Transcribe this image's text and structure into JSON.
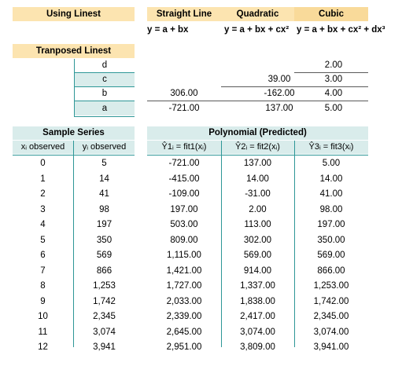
{
  "top": {
    "using_linest": "Using Linest",
    "models": [
      {
        "title": "Straight Line",
        "formula": "y = a + bx"
      },
      {
        "title": "Quadratic",
        "formula": "y = a + bx + cx²"
      },
      {
        "title": "Cubic",
        "formula": "y = a + bx + cx² + dx³"
      }
    ]
  },
  "transposed": {
    "title": "Tranposed Linest",
    "rows": [
      {
        "label": "d",
        "linear": "",
        "quad": "",
        "cubic": "2.00"
      },
      {
        "label": "c",
        "linear": "",
        "quad": "39.00",
        "cubic": "3.00"
      },
      {
        "label": "b",
        "linear": "306.00",
        "quad": "-162.00",
        "cubic": "4.00"
      },
      {
        "label": "a",
        "linear": "-721.00",
        "quad": "137.00",
        "cubic": "5.00"
      }
    ]
  },
  "sample": {
    "title": "Sample Series",
    "col_x": "xᵢ observed",
    "col_y": "yᵢ observed"
  },
  "poly": {
    "title": "Polynomial (Predicted)",
    "col1": "Ŷ1ᵢ = fit1(xᵢ)",
    "col2": "Ŷ2ᵢ = fit2(xᵢ)",
    "col3": "Ŷ3ᵢ = fit3(xᵢ)"
  },
  "rows": [
    {
      "x": "0",
      "y": "5",
      "f1": "-721.00",
      "f2": "137.00",
      "f3": "5.00"
    },
    {
      "x": "1",
      "y": "14",
      "f1": "-415.00",
      "f2": "14.00",
      "f3": "14.00"
    },
    {
      "x": "2",
      "y": "41",
      "f1": "-109.00",
      "f2": "-31.00",
      "f3": "41.00"
    },
    {
      "x": "3",
      "y": "98",
      "f1": "197.00",
      "f2": "2.00",
      "f3": "98.00"
    },
    {
      "x": "4",
      "y": "197",
      "f1": "503.00",
      "f2": "113.00",
      "f3": "197.00"
    },
    {
      "x": "5",
      "y": "350",
      "f1": "809.00",
      "f2": "302.00",
      "f3": "350.00"
    },
    {
      "x": "6",
      "y": "569",
      "f1": "1,115.00",
      "f2": "569.00",
      "f3": "569.00"
    },
    {
      "x": "7",
      "y": "866",
      "f1": "1,421.00",
      "f2": "914.00",
      "f3": "866.00"
    },
    {
      "x": "8",
      "y": "1,253",
      "f1": "1,727.00",
      "f2": "1,337.00",
      "f3": "1,253.00"
    },
    {
      "x": "9",
      "y": "1,742",
      "f1": "2,033.00",
      "f2": "1,838.00",
      "f3": "1,742.00"
    },
    {
      "x": "10",
      "y": "2,345",
      "f1": "2,339.00",
      "f2": "2,417.00",
      "f3": "2,345.00"
    },
    {
      "x": "11",
      "y": "3,074",
      "f1": "2,645.00",
      "f2": "3,074.00",
      "f3": "3,074.00"
    },
    {
      "x": "12",
      "y": "3,941",
      "f1": "2,951.00",
      "f2": "3,809.00",
      "f3": "3,941.00"
    }
  ]
}
